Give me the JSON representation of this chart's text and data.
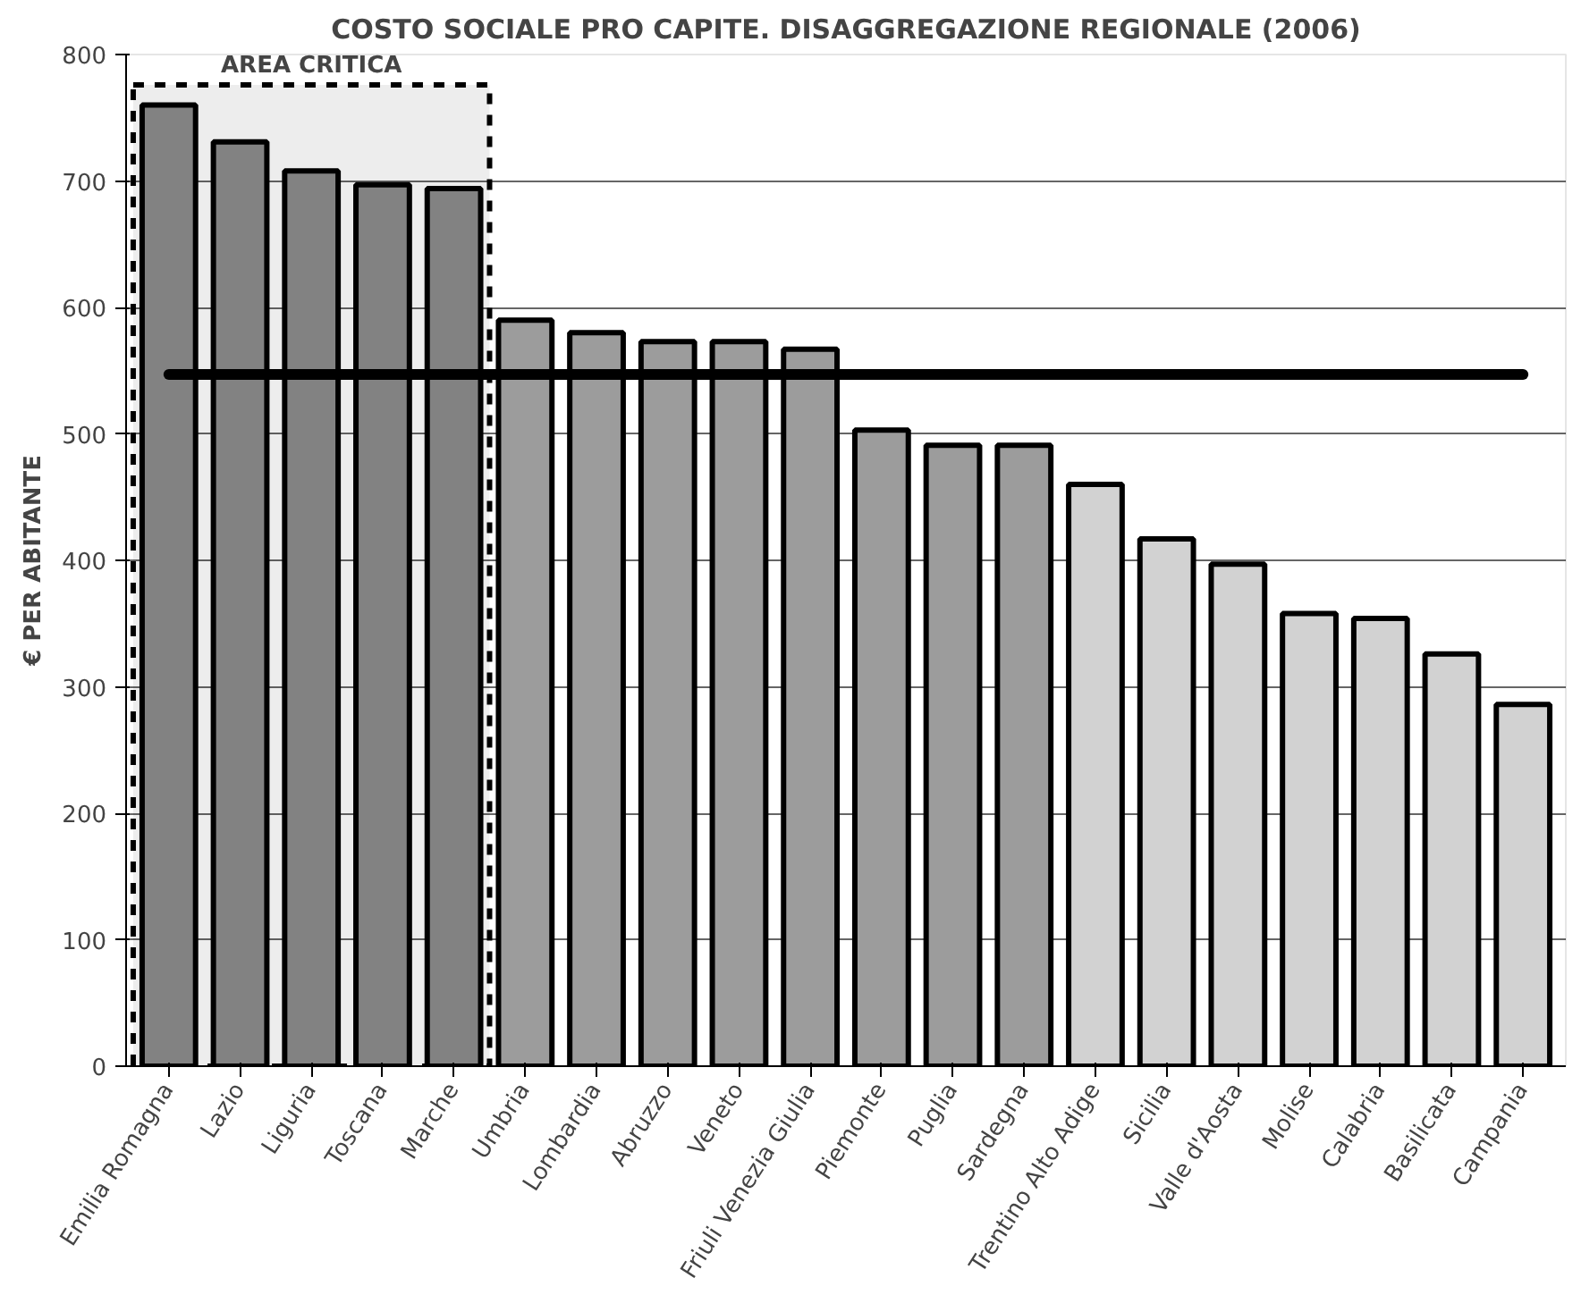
{
  "chart_data": {
    "type": "bar",
    "title": "COSTO SOCIALE PRO CAPITE. DISAGGREGAZIONE REGIONALE (2006)",
    "ylabel": "€ PER ABITANTE",
    "categories": [
      "Emilia Romagna",
      "Lazio",
      "Liguria",
      "Toscana",
      "Marche",
      "Umbria",
      "Lombardia",
      "Abruzzo",
      "Veneto",
      "Friuli Venezia Giulia",
      "Piemonte",
      "Puglia",
      "Sardegna",
      "Trentino Alto Adige",
      "Sicilia",
      "Valle d'Aosta",
      "Molise",
      "Calabria",
      "Basilicata",
      "Campania"
    ],
    "values": [
      760,
      731,
      708,
      697,
      694,
      590,
      580,
      573,
      573,
      567,
      503,
      491,
      491,
      460,
      417,
      397,
      358,
      354,
      326,
      286
    ],
    "colors": [
      "#8c8c8c",
      "#8c8c8c",
      "#8c8c8c",
      "#8c8c8c",
      "#8c8c8c",
      "#9c9c9c",
      "#9c9c9c",
      "#9c9c9c",
      "#9c9c9c",
      "#9c9c9c",
      "#9c9c9c",
      "#9c9c9c",
      "#9c9c9c",
      "#d2d2d2",
      "#d2d2d2",
      "#d2d2d2",
      "#d2d2d2",
      "#d2d2d2",
      "#d2d2d2",
      "#d2d2d2"
    ],
    "ylim": [
      0,
      800
    ],
    "yticks": [
      0,
      100,
      200,
      300,
      400,
      500,
      600,
      700,
      800
    ],
    "grid": "y",
    "ref_lines": [
      {
        "axis": "y",
        "value": 547,
        "color": "#000000",
        "line_style": "solid"
      }
    ],
    "bands": [
      {
        "axis": "x",
        "from": "Emilia Romagna",
        "to": "Marche",
        "label": "AREA CRITICA",
        "color": "#000000"
      }
    ]
  }
}
